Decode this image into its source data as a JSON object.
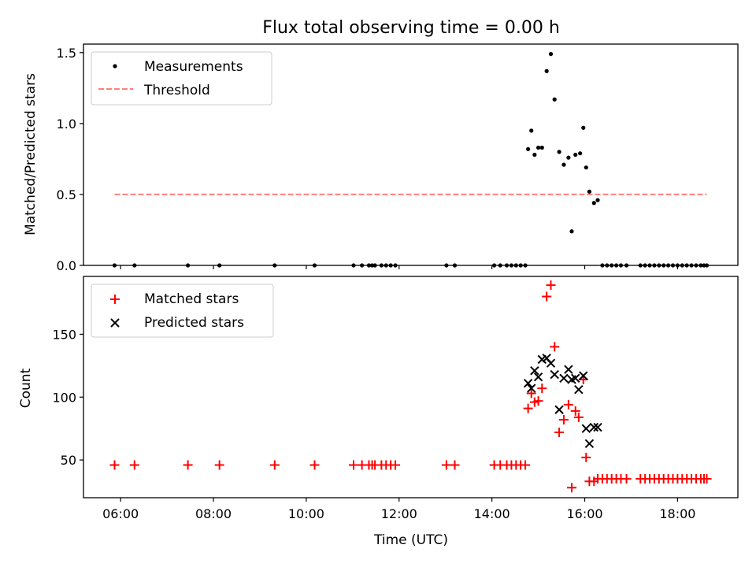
{
  "figure": {
    "title": "Flux total observing time = 0.00 h"
  },
  "chart_data": [
    {
      "type": "scatter",
      "xlabel": "",
      "ylabel": "Matched/Predicted stars",
      "xlim": [
        5.2,
        19.3
      ],
      "ylim": [
        0,
        1.56
      ],
      "yticks": [
        0,
        0.5,
        1.0,
        1.5
      ],
      "ytick_labels": [
        "0.0",
        "0.5",
        "1.0",
        "1.5"
      ],
      "grid": false,
      "legend_position": "top-left",
      "threshold": {
        "name": "Threshold",
        "value": 0.5,
        "x_range": [
          5.87,
          18.63
        ],
        "color": "#ff7f7f",
        "style": "dashed"
      },
      "series": [
        {
          "name": "Measurements",
          "marker": "dot",
          "color": "#000000",
          "points": [
            [
              5.87,
              0
            ],
            [
              6.3,
              0
            ],
            [
              7.45,
              0
            ],
            [
              8.13,
              0
            ],
            [
              9.32,
              0
            ],
            [
              10.18,
              0
            ],
            [
              11.02,
              0
            ],
            [
              11.2,
              0
            ],
            [
              11.35,
              0
            ],
            [
              11.42,
              0
            ],
            [
              11.48,
              0
            ],
            [
              11.62,
              0
            ],
            [
              11.72,
              0
            ],
            [
              11.82,
              0
            ],
            [
              11.92,
              0
            ],
            [
              13.02,
              0
            ],
            [
              13.2,
              0
            ],
            [
              14.05,
              0
            ],
            [
              14.18,
              0
            ],
            [
              14.32,
              0
            ],
            [
              14.42,
              0
            ],
            [
              14.52,
              0
            ],
            [
              14.62,
              0
            ],
            [
              14.72,
              0
            ],
            [
              14.78,
              0.82
            ],
            [
              14.85,
              0.95
            ],
            [
              14.92,
              0.78
            ],
            [
              15.0,
              0.83
            ],
            [
              15.08,
              0.83
            ],
            [
              15.18,
              1.37
            ],
            [
              15.27,
              1.49
            ],
            [
              15.35,
              1.17
            ],
            [
              15.45,
              0.8
            ],
            [
              15.55,
              0.71
            ],
            [
              15.65,
              0.76
            ],
            [
              15.72,
              0.24
            ],
            [
              15.8,
              0.78
            ],
            [
              15.9,
              0.79
            ],
            [
              15.97,
              0.97
            ],
            [
              16.03,
              0.69
            ],
            [
              16.1,
              0.52
            ],
            [
              16.2,
              0.44
            ],
            [
              16.28,
              0.46
            ],
            [
              16.38,
              0
            ],
            [
              16.48,
              0
            ],
            [
              16.58,
              0
            ],
            [
              16.68,
              0
            ],
            [
              16.78,
              0
            ],
            [
              16.9,
              0
            ],
            [
              17.2,
              0
            ],
            [
              17.3,
              0
            ],
            [
              17.4,
              0
            ],
            [
              17.5,
              0
            ],
            [
              17.6,
              0
            ],
            [
              17.7,
              0
            ],
            [
              17.8,
              0
            ],
            [
              17.9,
              0
            ],
            [
              18.0,
              0
            ],
            [
              18.1,
              0
            ],
            [
              18.2,
              0
            ],
            [
              18.3,
              0
            ],
            [
              18.4,
              0
            ],
            [
              18.5,
              0
            ],
            [
              18.57,
              0
            ],
            [
              18.63,
              0
            ]
          ]
        }
      ]
    },
    {
      "type": "scatter",
      "xlabel": "Time (UTC)",
      "ylabel": "Count",
      "xlim": [
        5.2,
        19.3
      ],
      "ylim": [
        20,
        196
      ],
      "xticks": [
        6,
        8,
        10,
        12,
        14,
        16,
        18
      ],
      "xtick_labels": [
        "06:00",
        "08:00",
        "10:00",
        "12:00",
        "14:00",
        "16:00",
        "18:00"
      ],
      "yticks": [
        50,
        100,
        150
      ],
      "ytick_labels": [
        "50",
        "100",
        "150"
      ],
      "grid": false,
      "legend_position": "top-left",
      "series": [
        {
          "name": "Matched stars",
          "marker": "plus",
          "color": "#ff0000",
          "points": [
            [
              5.87,
              46
            ],
            [
              6.3,
              46
            ],
            [
              7.45,
              46
            ],
            [
              8.13,
              46
            ],
            [
              9.32,
              46
            ],
            [
              10.18,
              46
            ],
            [
              11.02,
              46
            ],
            [
              11.2,
              46
            ],
            [
              11.35,
              46
            ],
            [
              11.42,
              46
            ],
            [
              11.48,
              46
            ],
            [
              11.62,
              46
            ],
            [
              11.72,
              46
            ],
            [
              11.82,
              46
            ],
            [
              11.92,
              46
            ],
            [
              13.02,
              46
            ],
            [
              13.2,
              46
            ],
            [
              14.05,
              46
            ],
            [
              14.18,
              46
            ],
            [
              14.32,
              46
            ],
            [
              14.42,
              46
            ],
            [
              14.52,
              46
            ],
            [
              14.62,
              46
            ],
            [
              14.72,
              46
            ],
            [
              14.78,
              91
            ],
            [
              14.85,
              103
            ],
            [
              14.92,
              96
            ],
            [
              15.0,
              97
            ],
            [
              15.08,
              107
            ],
            [
              15.18,
              180
            ],
            [
              15.27,
              189
            ],
            [
              15.35,
              140
            ],
            [
              15.45,
              72
            ],
            [
              15.55,
              82
            ],
            [
              15.65,
              94
            ],
            [
              15.72,
              28
            ],
            [
              15.8,
              89
            ],
            [
              15.87,
              84
            ],
            [
              15.97,
              114
            ],
            [
              16.03,
              52
            ],
            [
              16.1,
              33
            ],
            [
              16.2,
              33
            ],
            [
              16.28,
              35
            ],
            [
              16.38,
              35
            ],
            [
              16.48,
              35
            ],
            [
              16.58,
              35
            ],
            [
              16.68,
              35
            ],
            [
              16.78,
              35
            ],
            [
              16.9,
              35
            ],
            [
              17.2,
              35
            ],
            [
              17.3,
              35
            ],
            [
              17.4,
              35
            ],
            [
              17.5,
              35
            ],
            [
              17.6,
              35
            ],
            [
              17.7,
              35
            ],
            [
              17.8,
              35
            ],
            [
              17.9,
              35
            ],
            [
              18.0,
              35
            ],
            [
              18.1,
              35
            ],
            [
              18.2,
              35
            ],
            [
              18.3,
              35
            ],
            [
              18.4,
              35
            ],
            [
              18.5,
              35
            ],
            [
              18.57,
              35
            ],
            [
              18.63,
              35
            ]
          ]
        },
        {
          "name": "Predicted stars",
          "marker": "x",
          "color": "#000000",
          "points": [
            [
              14.78,
              111
            ],
            [
              14.85,
              107
            ],
            [
              14.92,
              121
            ],
            [
              15.0,
              116
            ],
            [
              15.08,
              130
            ],
            [
              15.18,
              131
            ],
            [
              15.27,
              127
            ],
            [
              15.35,
              118
            ],
            [
              15.45,
              90
            ],
            [
              15.55,
              115
            ],
            [
              15.65,
              122
            ],
            [
              15.72,
              114
            ],
            [
              15.8,
              115
            ],
            [
              15.87,
              106
            ],
            [
              15.97,
              117
            ],
            [
              16.03,
              75
            ],
            [
              16.1,
              63
            ],
            [
              16.2,
              76
            ],
            [
              16.28,
              76
            ]
          ]
        }
      ]
    }
  ]
}
